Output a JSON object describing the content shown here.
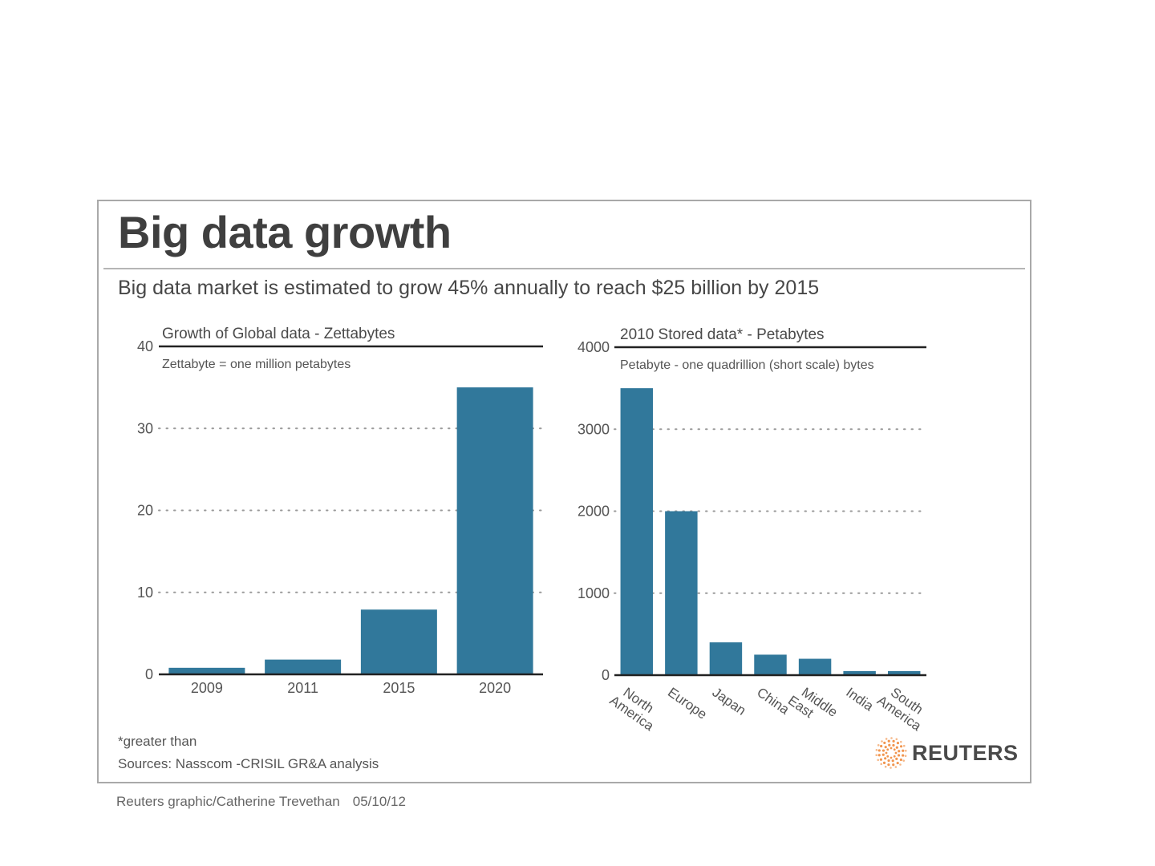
{
  "header": {
    "title": "Big data growth",
    "subtitle": "Big data market is estimated to grow 45% annually to reach $25 billion by 2015"
  },
  "chart_data": [
    {
      "type": "bar",
      "title": "Growth of Global data - Zettabytes",
      "subtitle": "Zettabyte = one million petabytes",
      "xlabel": "",
      "ylabel": "",
      "categories": [
        "2009",
        "2011",
        "2015",
        "2020"
      ],
      "values": [
        0.8,
        1.8,
        7.9,
        35
      ],
      "ylim": [
        0,
        40
      ],
      "yticks": [
        0,
        10,
        20,
        30,
        40
      ],
      "grid": "dotted horizontal",
      "bar_color": "#31789b"
    },
    {
      "type": "bar",
      "title": "2010 Stored data* - Petabytes",
      "subtitle": "Petabyte - one quadrillion (short scale) bytes",
      "xlabel": "",
      "ylabel": "",
      "categories": [
        "North America",
        "Europe",
        "Japan",
        "China",
        "Middle East",
        "India",
        "South America"
      ],
      "category_lines": [
        [
          "North",
          "America"
        ],
        [
          "Europe"
        ],
        [
          "Japan"
        ],
        [
          "China"
        ],
        [
          "Middle",
          "East"
        ],
        [
          "India"
        ],
        [
          "South",
          "America"
        ]
      ],
      "values": [
        3500,
        2000,
        400,
        250,
        200,
        50,
        50
      ],
      "ylim": [
        0,
        4000
      ],
      "yticks": [
        0,
        1000,
        2000,
        3000,
        4000
      ],
      "grid": "dotted horizontal",
      "bar_color": "#31789b"
    }
  ],
  "footer": {
    "footnote": "*greater than",
    "sources": "Sources: Nasscom -CRISIL GR&A analysis",
    "logo_text": "REUTERS",
    "logo_color": "#f08a3c",
    "credit": "Reuters graphic/Catherine Trevethan",
    "date": "05/10/12"
  }
}
